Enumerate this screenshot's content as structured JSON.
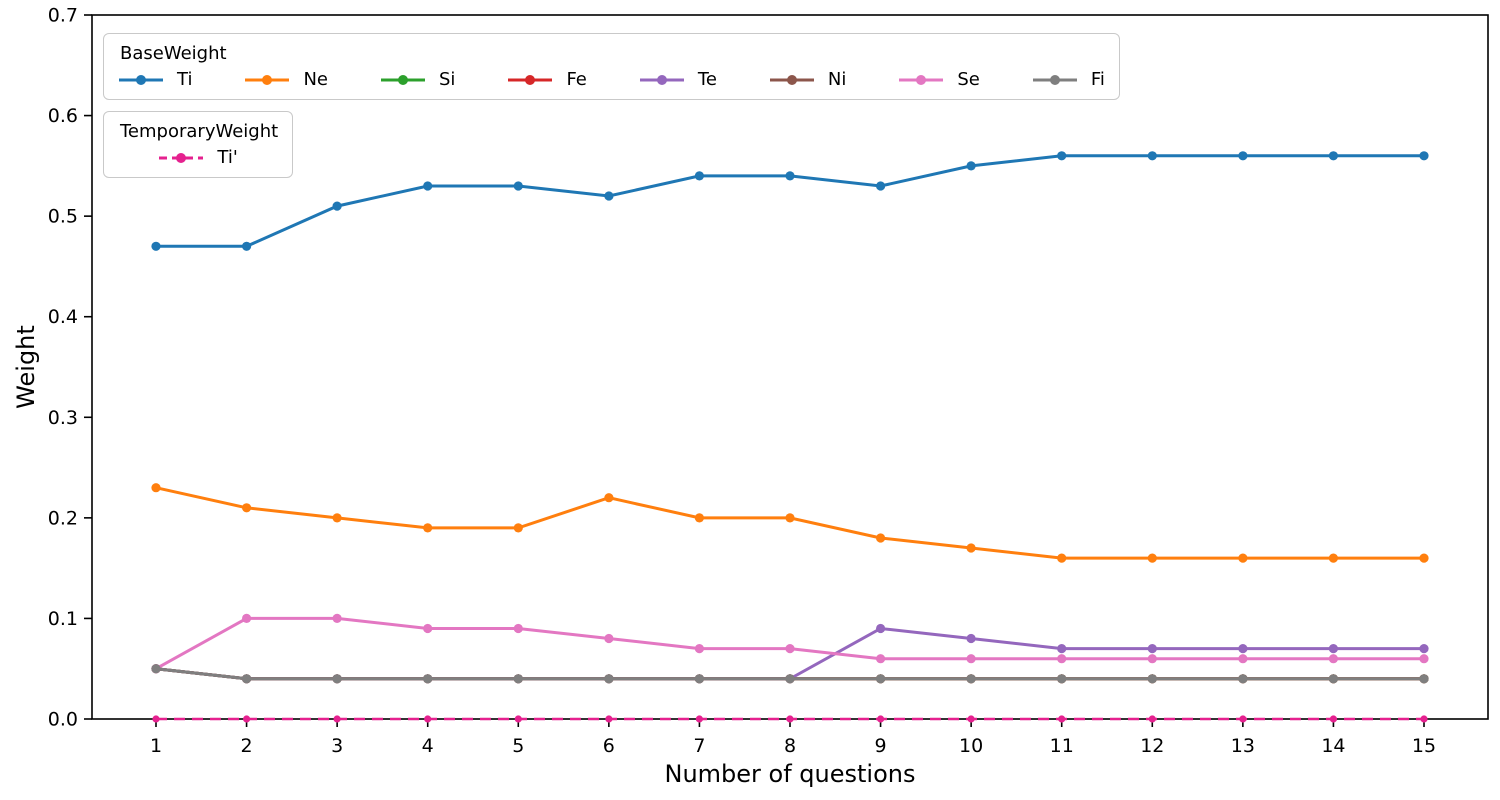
{
  "figure": {
    "background": "#ffffff"
  },
  "chart_data": {
    "type": "line",
    "title": "",
    "xlabel": "Number of questions",
    "ylabel": "Weight",
    "grid": false,
    "x": [
      1,
      2,
      3,
      4,
      5,
      6,
      7,
      8,
      9,
      10,
      11,
      12,
      13,
      14,
      15
    ],
    "xticks": [
      1,
      2,
      3,
      4,
      5,
      6,
      7,
      8,
      9,
      10,
      11,
      12,
      13,
      14,
      15
    ],
    "yticks": [
      0.0,
      0.1,
      0.2,
      0.3,
      0.4,
      0.5,
      0.6,
      0.7
    ],
    "ylim": [
      0.0,
      0.7
    ],
    "legends": [
      {
        "id": "base",
        "title": "BaseWeight",
        "position": "upper-left",
        "entries": [
          "Ti",
          "Ne",
          "Si",
          "Fe",
          "Te",
          "Ni",
          "Se",
          "Fi"
        ]
      },
      {
        "id": "temp",
        "title": "TemporaryWeight",
        "position": "upper-left-below",
        "entries": [
          "Ti'"
        ]
      }
    ],
    "series": [
      {
        "name": "Ti",
        "legend": "base",
        "color": "#1f77b4",
        "dash": "solid",
        "values": [
          0.47,
          0.47,
          0.51,
          0.53,
          0.53,
          0.52,
          0.54,
          0.54,
          0.53,
          0.55,
          0.56,
          0.56,
          0.56,
          0.56,
          0.56
        ]
      },
      {
        "name": "Ne",
        "legend": "base",
        "color": "#ff7f0e",
        "dash": "solid",
        "values": [
          0.23,
          0.21,
          0.2,
          0.19,
          0.19,
          0.22,
          0.2,
          0.2,
          0.18,
          0.17,
          0.16,
          0.16,
          0.16,
          0.16,
          0.16
        ]
      },
      {
        "name": "Si",
        "legend": "base",
        "color": "#2ca02c",
        "dash": "solid",
        "values": [
          0.05,
          0.04,
          0.04,
          0.04,
          0.04,
          0.04,
          0.04,
          0.04,
          0.04,
          0.04,
          0.04,
          0.04,
          0.04,
          0.04,
          0.04
        ]
      },
      {
        "name": "Fe",
        "legend": "base",
        "color": "#d62728",
        "dash": "solid",
        "values": [
          0.05,
          0.04,
          0.04,
          0.04,
          0.04,
          0.04,
          0.04,
          0.04,
          0.04,
          0.04,
          0.04,
          0.04,
          0.04,
          0.04,
          0.04
        ]
      },
      {
        "name": "Te",
        "legend": "base",
        "color": "#9467bd",
        "dash": "solid",
        "values": [
          0.05,
          0.04,
          0.04,
          0.04,
          0.04,
          0.04,
          0.04,
          0.04,
          0.09,
          0.08,
          0.07,
          0.07,
          0.07,
          0.07,
          0.07
        ]
      },
      {
        "name": "Ni",
        "legend": "base",
        "color": "#8c564b",
        "dash": "solid",
        "values": [
          0.05,
          0.04,
          0.04,
          0.04,
          0.04,
          0.04,
          0.04,
          0.04,
          0.04,
          0.04,
          0.04,
          0.04,
          0.04,
          0.04,
          0.04
        ]
      },
      {
        "name": "Se",
        "legend": "base",
        "color": "#e377c2",
        "dash": "solid",
        "values": [
          0.05,
          0.1,
          0.1,
          0.09,
          0.09,
          0.08,
          0.07,
          0.07,
          0.06,
          0.06,
          0.06,
          0.06,
          0.06,
          0.06,
          0.06
        ]
      },
      {
        "name": "Fi",
        "legend": "base",
        "color": "#7f7f7f",
        "dash": "solid",
        "values": [
          0.05,
          0.04,
          0.04,
          0.04,
          0.04,
          0.04,
          0.04,
          0.04,
          0.04,
          0.04,
          0.04,
          0.04,
          0.04,
          0.04,
          0.04
        ]
      },
      {
        "name": "Ti'",
        "legend": "temp",
        "color": "#e5218f",
        "dash": "dashed",
        "values": [
          0.0,
          0.0,
          0.0,
          0.0,
          0.0,
          0.0,
          0.0,
          0.0,
          0.0,
          0.0,
          0.0,
          0.0,
          0.0,
          0.0,
          0.0
        ]
      }
    ]
  }
}
